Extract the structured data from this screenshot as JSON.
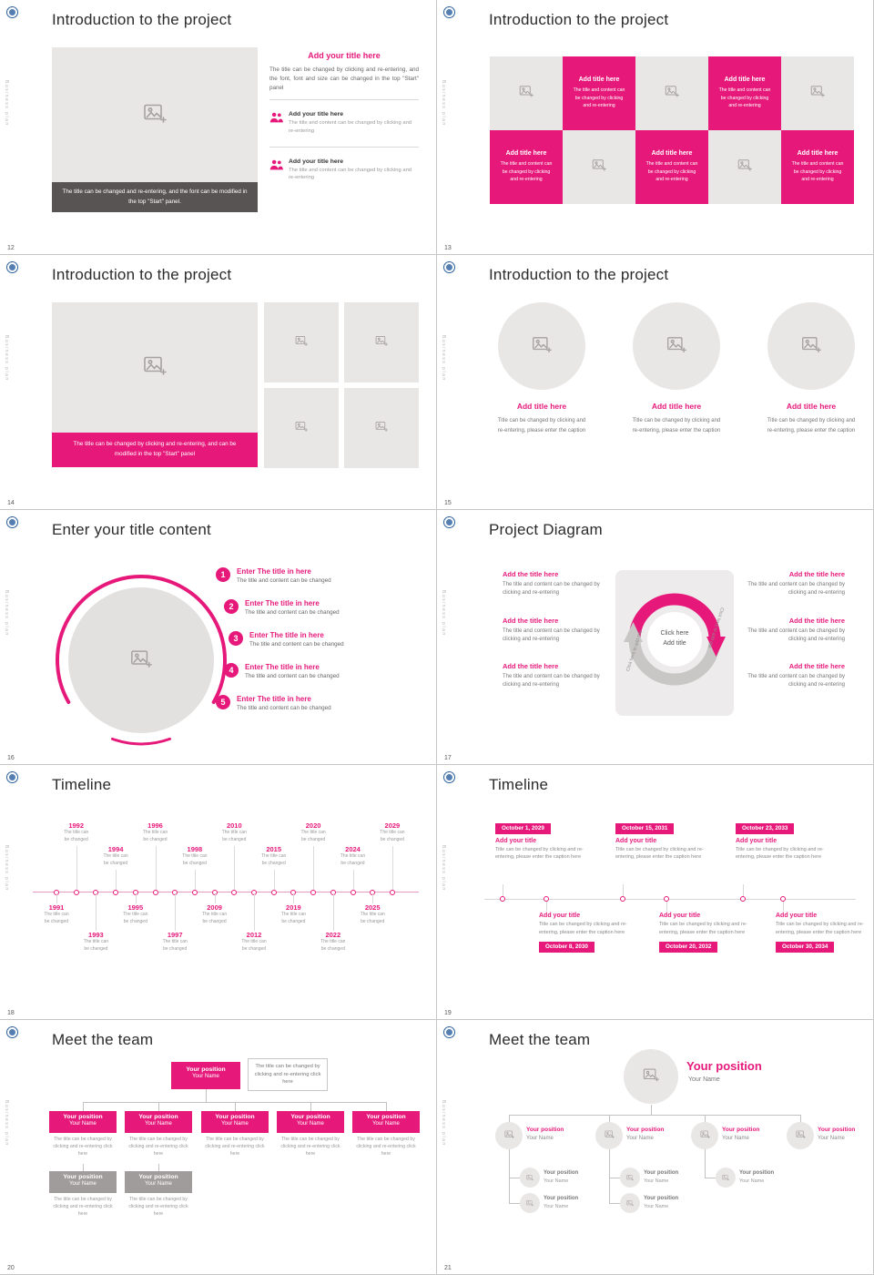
{
  "colors": {
    "accent": "#e6197b",
    "placeholder": "#e9e6e6",
    "icon_gray": "#a7a2a2",
    "dark_bar": "#595454",
    "gray_box": "#a09c9c",
    "panel": "#edebeb",
    "logo_blue": "#2b5f9e"
  },
  "vertical_text": "Business plan",
  "s12": {
    "number": "12",
    "title": "Introduction to the project",
    "photo_caption": "The title can be changed and re-entering, and the font can be modified in the top \"Start\" panel.",
    "side_title": "Add your title here",
    "side_body": "The title can be changed by clicking and re-entering, and the font, font and size can be changed in the top \"Start\" panel",
    "items": [
      {
        "title": "Add your title here",
        "text": "The title and content can be changed by clicking and re-entering"
      },
      {
        "title": "Add your title here",
        "text": "The title and content can be changed by clicking and re-entering"
      }
    ]
  },
  "s13": {
    "number": "13",
    "title": "Introduction to the project",
    "tile_title": "Add title here",
    "tile_text": "The title and content can be changed by clicking and re-entering",
    "pattern": [
      [
        "image",
        "text",
        "image",
        "text",
        "image"
      ],
      [
        "text",
        "image",
        "text",
        "image",
        "text"
      ]
    ]
  },
  "s14": {
    "number": "14",
    "title": "Introduction to the project",
    "photo_caption": "The title can be changed by clicking and re-entering, and can be modified in the top \"Start\" panel"
  },
  "s15": {
    "number": "15",
    "title": "Introduction to the project",
    "card_title": "Add title here",
    "card_text": "Title can be changed by clicking and re-entering, please enter the caption",
    "count": 3
  },
  "s16": {
    "number": "16",
    "title": "Enter your title content",
    "items": [
      {
        "num": "1",
        "title": "Enter The title in here",
        "text": "The title and content can be changed"
      },
      {
        "num": "2",
        "title": "Enter The title in here",
        "text": "The title and content can be changed"
      },
      {
        "num": "3",
        "title": "Enter The title in here",
        "text": "The title and content can be changed"
      },
      {
        "num": "4",
        "title": "Enter The title in here",
        "text": "The title and content can be changed"
      },
      {
        "num": "5",
        "title": "Enter The title in here",
        "text": "The title and content can be changed"
      }
    ]
  },
  "s17": {
    "number": "17",
    "title": "Project Diagram",
    "center_line1": "Click here",
    "center_line2": "Add title",
    "arc_label": "Click here to add title",
    "item_title": "Add the title here",
    "item_text": "The title and content can be changed by clicking and re-entering",
    "left_count": 3,
    "right_count": 3
  },
  "s18": {
    "number": "18",
    "title": "Timeline",
    "node_caption": "The title can be changed",
    "nodes": [
      {
        "year": "1991",
        "side": "bottom",
        "level": 1
      },
      {
        "year": "1992",
        "side": "top",
        "level": 2
      },
      {
        "year": "1993",
        "side": "bottom",
        "level": 2
      },
      {
        "year": "1994",
        "side": "top",
        "level": 1
      },
      {
        "year": "1995",
        "side": "bottom",
        "level": 1
      },
      {
        "year": "1996",
        "side": "top",
        "level": 2
      },
      {
        "year": "1997",
        "side": "bottom",
        "level": 2
      },
      {
        "year": "1998",
        "side": "top",
        "level": 1
      },
      {
        "year": "2009",
        "side": "bottom",
        "level": 1
      },
      {
        "year": "2010",
        "side": "top",
        "level": 2
      },
      {
        "year": "2012",
        "side": "bottom",
        "level": 2
      },
      {
        "year": "2015",
        "side": "top",
        "level": 1
      },
      {
        "year": "2019",
        "side": "bottom",
        "level": 1
      },
      {
        "year": "2020",
        "side": "top",
        "level": 2
      },
      {
        "year": "2022",
        "side": "bottom",
        "level": 2
      },
      {
        "year": "2024",
        "side": "top",
        "level": 1
      },
      {
        "year": "2025",
        "side": "bottom",
        "level": 1
      },
      {
        "year": "2029",
        "side": "top",
        "level": 2
      }
    ]
  },
  "s19": {
    "number": "19",
    "title": "Timeline",
    "entry_title": "Add your title",
    "entry_text": "Title can be changed by clicking and re-entering, please enter the caption here",
    "top_dates": [
      "October 1, 2029",
      "October 15, 2031",
      "October 23, 2033"
    ],
    "bottom_dates": [
      "October 8, 2030",
      "October 20, 2032",
      "October 30, 2034"
    ]
  },
  "s20": {
    "number": "20",
    "title": "Meet the team",
    "position_label": "Your position",
    "name_label": "Your Name",
    "note": "The title can be changed by clicking and re-entering click here",
    "member_caption": "The title can be changed by clicking and re-entering click here",
    "row1_count": 5,
    "row2_count": 2
  },
  "s21": {
    "number": "21",
    "title": "Meet the team",
    "position_label": "Your position",
    "name_label": "Your Name",
    "columns": 4,
    "subs": [
      2,
      2,
      1,
      0
    ]
  }
}
